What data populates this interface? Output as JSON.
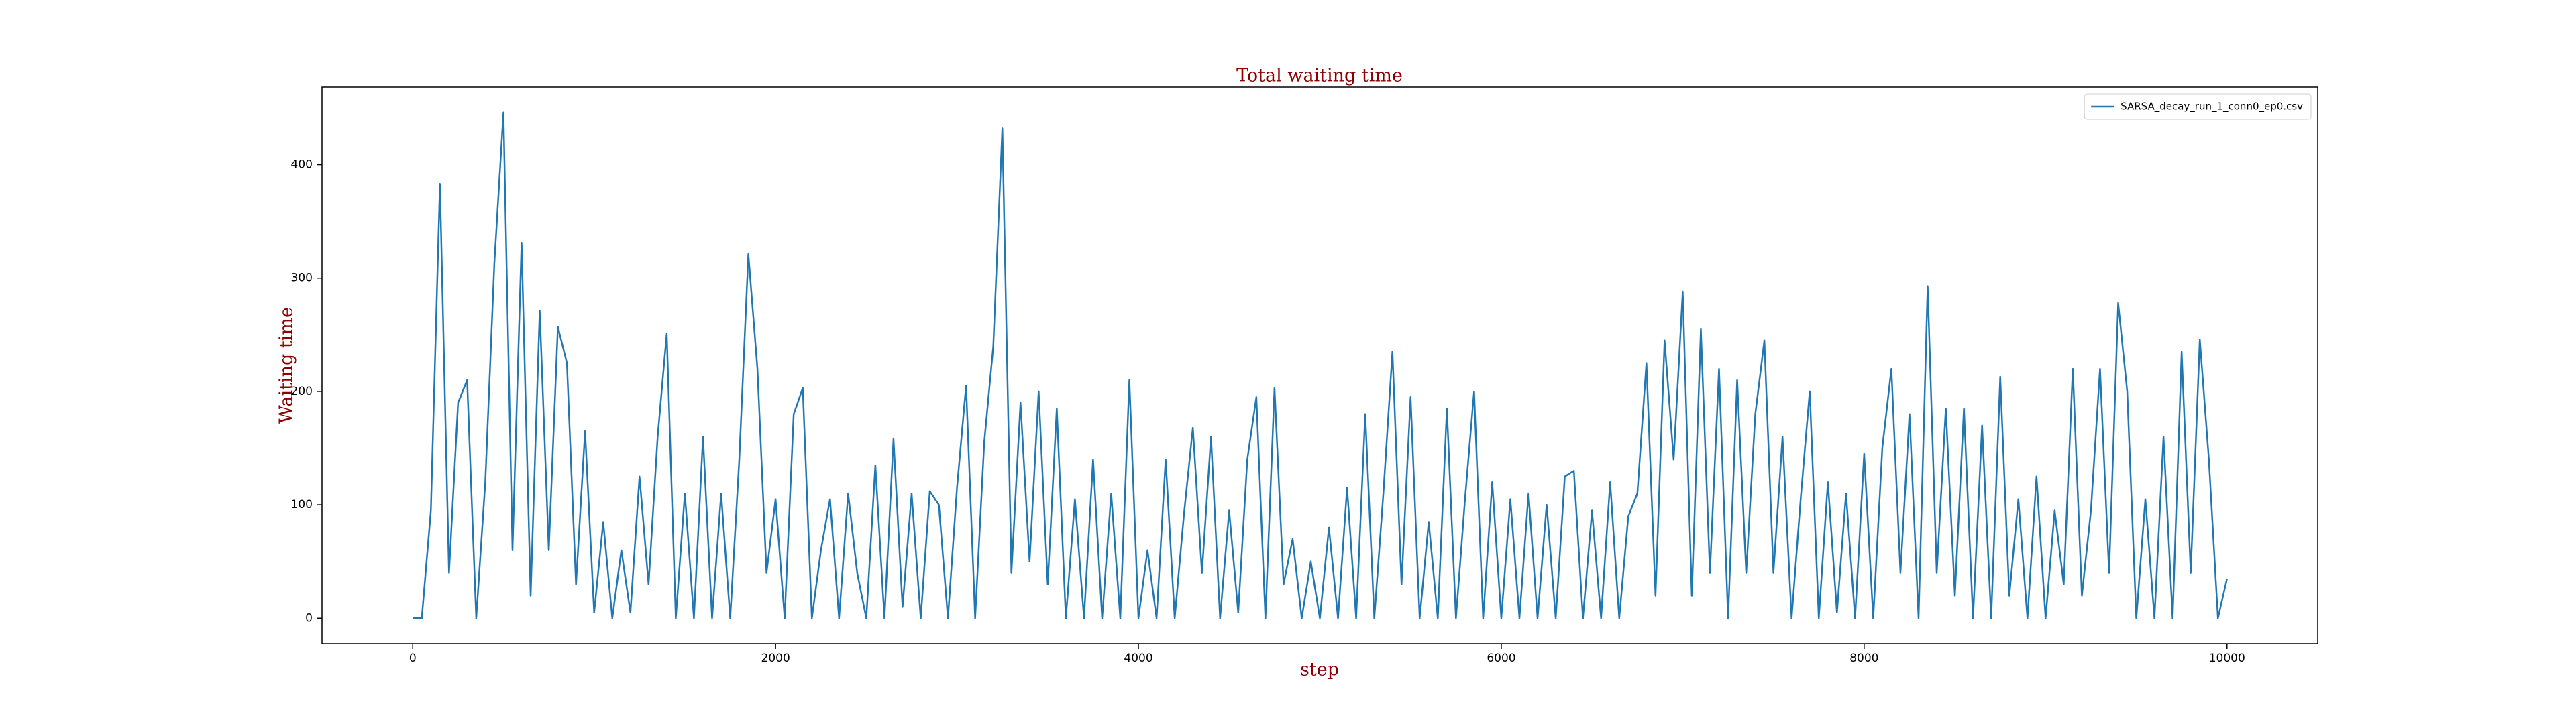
{
  "chart_data": {
    "type": "line",
    "title": "Total waiting time",
    "x_label": "step",
    "y_label": "Waiting time",
    "xlim": [
      -500,
      10500
    ],
    "ylim": [
      -22.3,
      468.3
    ],
    "xticks": [
      0,
      2000,
      4000,
      6000,
      8000,
      10000
    ],
    "yticks": [
      0,
      100,
      200,
      300,
      400
    ],
    "legend": "upper right",
    "series": [
      {
        "name": "SARSA_decay_run_1_conn0_ep0.csv",
        "color": "#1f77b4",
        "x": [
          0,
          50,
          100,
          150,
          200,
          250,
          300,
          350,
          400,
          450,
          500,
          550,
          600,
          650,
          700,
          750,
          800,
          850,
          900,
          950,
          1000,
          1050,
          1100,
          1150,
          1200,
          1250,
          1300,
          1350,
          1400,
          1450,
          1500,
          1550,
          1600,
          1650,
          1700,
          1750,
          1800,
          1850,
          1900,
          1950,
          2000,
          2050,
          2100,
          2150,
          2200,
          2250,
          2300,
          2350,
          2400,
          2450,
          2500,
          2550,
          2600,
          2650,
          2700,
          2750,
          2800,
          2850,
          2900,
          2950,
          3000,
          3050,
          3100,
          3150,
          3200,
          3250,
          3300,
          3350,
          3400,
          3450,
          3500,
          3550,
          3600,
          3650,
          3700,
          3750,
          3800,
          3850,
          3900,
          3950,
          4000,
          4050,
          4100,
          4150,
          4200,
          4250,
          4300,
          4350,
          4400,
          4450,
          4500,
          4550,
          4600,
          4650,
          4700,
          4750,
          4800,
          4850,
          4900,
          4950,
          5000,
          5050,
          5100,
          5150,
          5200,
          5250,
          5300,
          5350,
          5400,
          5450,
          5500,
          5550,
          5600,
          5650,
          5700,
          5750,
          5800,
          5850,
          5900,
          5950,
          6000,
          6050,
          6100,
          6150,
          6200,
          6250,
          6300,
          6350,
          6400,
          6450,
          6500,
          6550,
          6600,
          6650,
          6700,
          6750,
          6800,
          6850,
          6900,
          6950,
          7000,
          7050,
          7100,
          7150,
          7200,
          7250,
          7300,
          7350,
          7400,
          7450,
          7500,
          7550,
          7600,
          7650,
          7700,
          7750,
          7800,
          7850,
          7900,
          7950,
          8000,
          8050,
          8100,
          8150,
          8200,
          8250,
          8300,
          8350,
          8400,
          8450,
          8500,
          8550,
          8600,
          8650,
          8700,
          8750,
          8800,
          8850,
          8900,
          8950,
          9000,
          9050,
          9100,
          9150,
          9200,
          9250,
          9300,
          9350,
          9400,
          9450,
          9500,
          9550,
          9600,
          9650,
          9700,
          9750,
          9800,
          9850,
          9900,
          9950,
          10000
        ],
        "values": [
          0,
          0,
          95,
          383,
          40,
          190,
          210,
          0,
          120,
          313,
          446,
          60,
          331,
          20,
          271,
          60,
          257,
          225,
          30,
          165,
          5,
          85,
          0,
          60,
          5,
          125,
          30,
          160,
          251,
          0,
          110,
          0,
          160,
          0,
          110,
          0,
          140,
          321,
          220,
          40,
          105,
          0,
          180,
          203,
          0,
          60,
          105,
          0,
          110,
          40,
          0,
          135,
          0,
          158,
          10,
          110,
          0,
          112,
          100,
          0,
          115,
          205,
          0,
          155,
          240,
          432,
          40,
          190,
          50,
          200,
          30,
          185,
          0,
          105,
          0,
          140,
          0,
          110,
          0,
          210,
          0,
          60,
          0,
          140,
          0,
          90,
          168,
          40,
          160,
          0,
          95,
          5,
          140,
          195,
          0,
          203,
          30,
          70,
          0,
          50,
          0,
          80,
          0,
          115,
          0,
          180,
          0,
          110,
          235,
          30,
          195,
          0,
          85,
          0,
          185,
          0,
          105,
          200,
          0,
          120,
          0,
          105,
          0,
          110,
          0,
          100,
          0,
          125,
          130,
          0,
          95,
          0,
          120,
          0,
          90,
          110,
          225,
          20,
          245,
          140,
          288,
          20,
          255,
          40,
          220,
          0,
          210,
          40,
          180,
          245,
          40,
          160,
          0,
          105,
          200,
          0,
          120,
          5,
          110,
          0,
          145,
          0,
          150,
          220,
          40,
          180,
          0,
          293,
          40,
          185,
          20,
          185,
          0,
          170,
          0,
          213,
          20,
          105,
          0,
          125,
          0,
          95,
          30,
          220,
          20,
          95,
          220,
          40,
          278,
          200,
          0,
          105,
          0,
          160,
          0,
          235,
          40,
          246,
          140,
          0,
          35
        ]
      }
    ]
  }
}
